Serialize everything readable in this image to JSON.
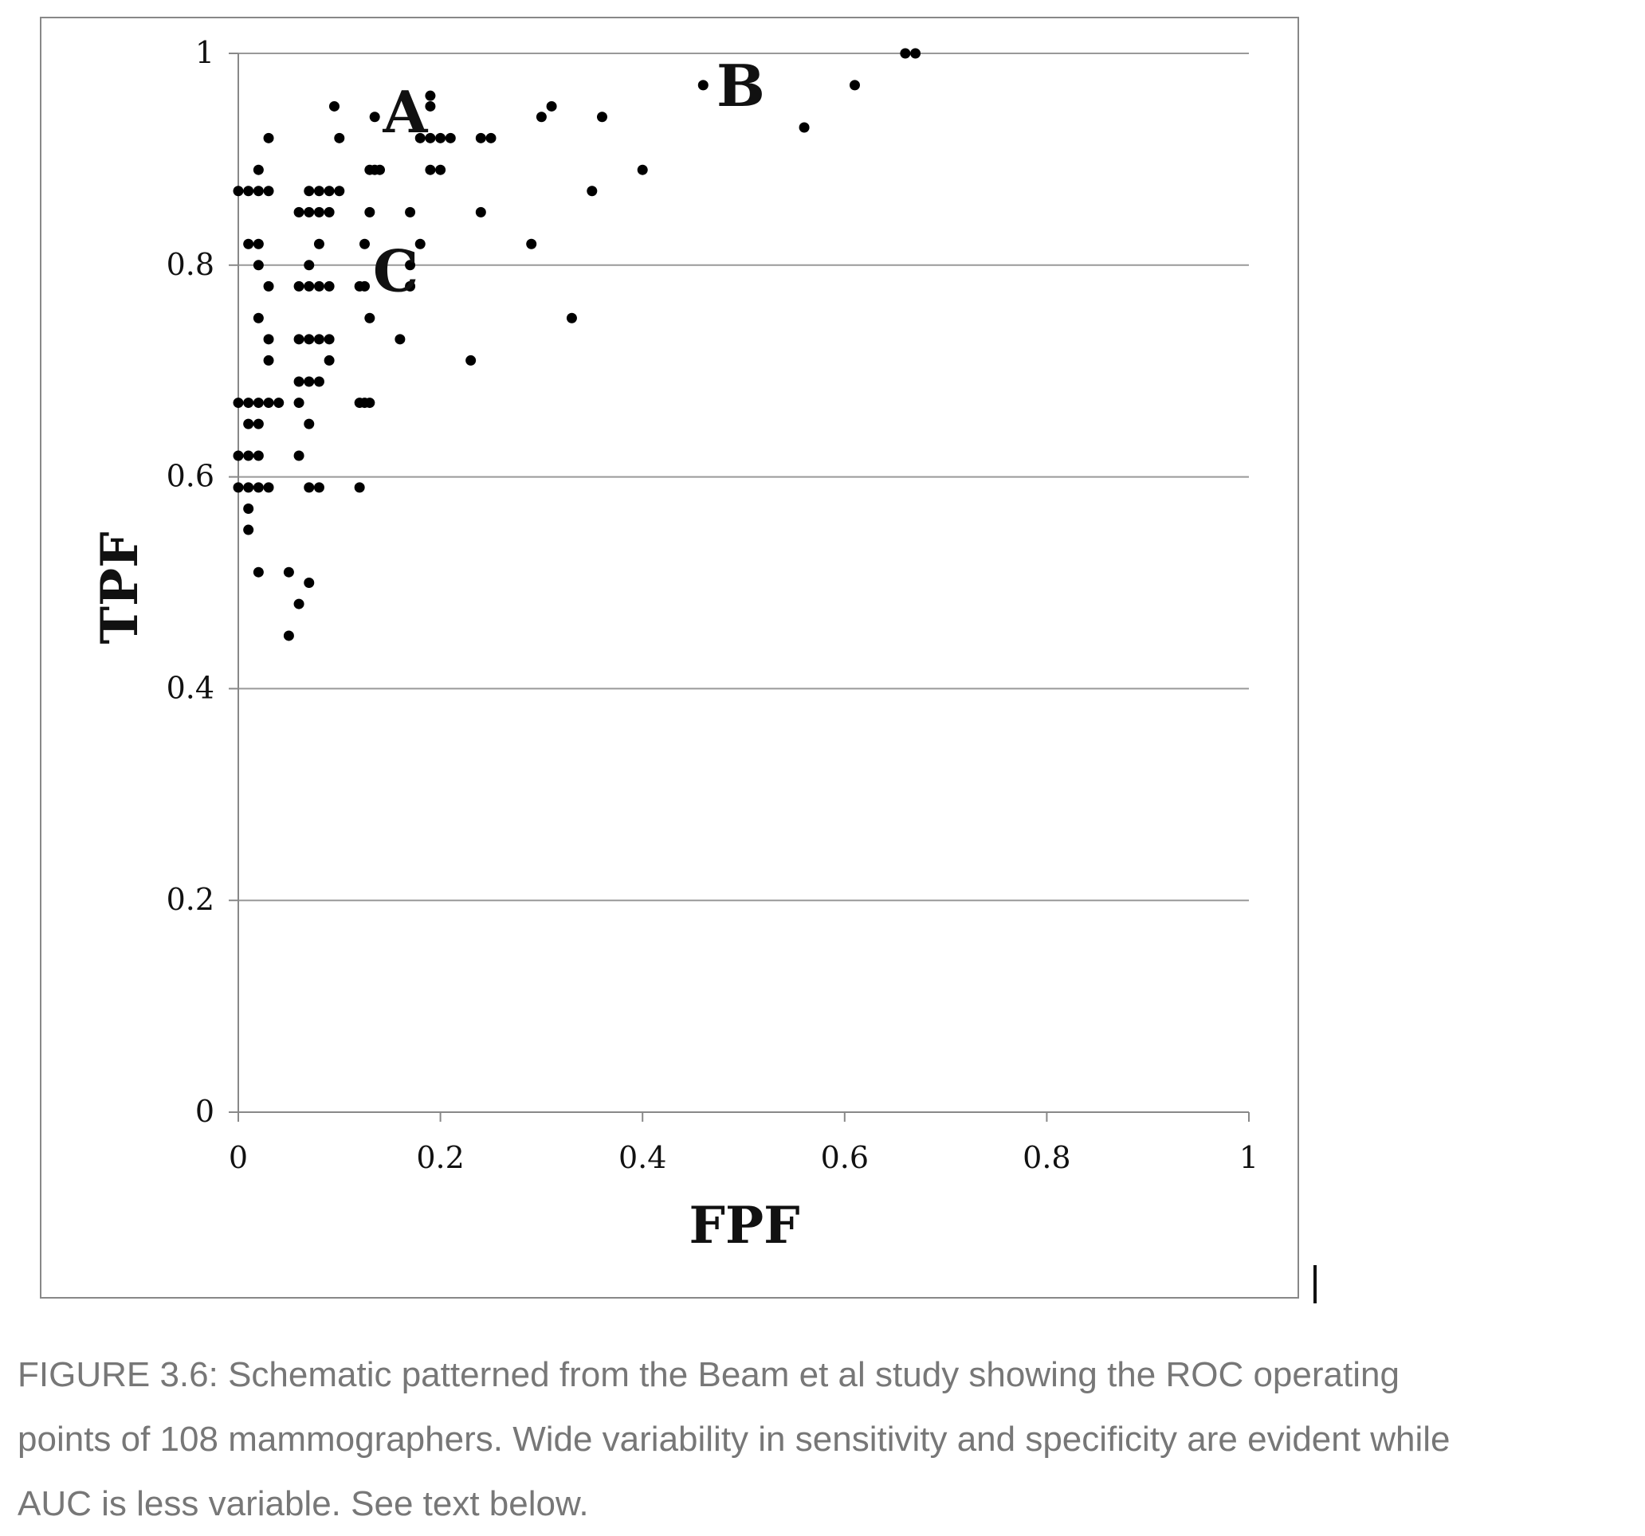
{
  "chart_data": {
    "type": "scatter",
    "title": "",
    "xlabel": "FPF",
    "ylabel": "TPF",
    "xlim": [
      0,
      1
    ],
    "ylim": [
      0,
      1
    ],
    "x_ticks": [
      "0",
      "0.2",
      "0.4",
      "0.6",
      "0.8",
      "1"
    ],
    "y_ticks": [
      "0",
      "0.2",
      "0.4",
      "0.6",
      "0.8",
      "1"
    ],
    "grid": "horizontal",
    "legend": "none",
    "colors": {
      "points": "#000000",
      "grid": "#999999",
      "axis": "#888888"
    },
    "annotations": [
      {
        "text": "A",
        "x": 0.14,
        "y": 0.945
      },
      {
        "text": "B",
        "x": 0.47,
        "y": 0.97
      },
      {
        "text": "C",
        "x": 0.13,
        "y": 0.795
      }
    ],
    "points": [
      [
        0.0,
        0.87
      ],
      [
        0.01,
        0.87
      ],
      [
        0.02,
        0.87
      ],
      [
        0.03,
        0.87
      ],
      [
        0.02,
        0.89
      ],
      [
        0.03,
        0.92
      ],
      [
        0.01,
        0.82
      ],
      [
        0.02,
        0.82
      ],
      [
        0.02,
        0.8
      ],
      [
        0.03,
        0.78
      ],
      [
        0.02,
        0.75
      ],
      [
        0.03,
        0.73
      ],
      [
        0.03,
        0.71
      ],
      [
        0.0,
        0.67
      ],
      [
        0.01,
        0.67
      ],
      [
        0.02,
        0.67
      ],
      [
        0.03,
        0.67
      ],
      [
        0.04,
        0.67
      ],
      [
        0.01,
        0.65
      ],
      [
        0.02,
        0.65
      ],
      [
        0.0,
        0.62
      ],
      [
        0.01,
        0.62
      ],
      [
        0.02,
        0.62
      ],
      [
        0.0,
        0.59
      ],
      [
        0.01,
        0.59
      ],
      [
        0.02,
        0.59
      ],
      [
        0.03,
        0.59
      ],
      [
        0.01,
        0.57
      ],
      [
        0.01,
        0.55
      ],
      [
        0.02,
        0.51
      ],
      [
        0.05,
        0.51
      ],
      [
        0.06,
        0.48
      ],
      [
        0.07,
        0.5
      ],
      [
        0.05,
        0.45
      ],
      [
        0.06,
        0.67
      ],
      [
        0.06,
        0.62
      ],
      [
        0.07,
        0.65
      ],
      [
        0.07,
        0.59
      ],
      [
        0.08,
        0.59
      ],
      [
        0.06,
        0.69
      ],
      [
        0.07,
        0.69
      ],
      [
        0.08,
        0.69
      ],
      [
        0.06,
        0.73
      ],
      [
        0.07,
        0.73
      ],
      [
        0.08,
        0.73
      ],
      [
        0.09,
        0.73
      ],
      [
        0.06,
        0.78
      ],
      [
        0.07,
        0.78
      ],
      [
        0.08,
        0.78
      ],
      [
        0.09,
        0.78
      ],
      [
        0.07,
        0.8
      ],
      [
        0.08,
        0.82
      ],
      [
        0.09,
        0.71
      ],
      [
        0.06,
        0.85
      ],
      [
        0.07,
        0.85
      ],
      [
        0.08,
        0.85
      ],
      [
        0.09,
        0.85
      ],
      [
        0.07,
        0.87
      ],
      [
        0.08,
        0.87
      ],
      [
        0.09,
        0.87
      ],
      [
        0.1,
        0.87
      ],
      [
        0.095,
        0.95
      ],
      [
        0.1,
        0.92
      ],
      [
        0.12,
        0.67
      ],
      [
        0.125,
        0.67
      ],
      [
        0.13,
        0.67
      ],
      [
        0.12,
        0.59
      ],
      [
        0.12,
        0.78
      ],
      [
        0.125,
        0.78
      ],
      [
        0.125,
        0.82
      ],
      [
        0.13,
        0.75
      ],
      [
        0.13,
        0.85
      ],
      [
        0.13,
        0.89
      ],
      [
        0.135,
        0.89
      ],
      [
        0.14,
        0.89
      ],
      [
        0.135,
        0.94
      ],
      [
        0.16,
        0.73
      ],
      [
        0.17,
        0.78
      ],
      [
        0.17,
        0.8
      ],
      [
        0.17,
        0.85
      ],
      [
        0.18,
        0.82
      ],
      [
        0.18,
        0.92
      ],
      [
        0.19,
        0.92
      ],
      [
        0.2,
        0.92
      ],
      [
        0.21,
        0.92
      ],
      [
        0.19,
        0.89
      ],
      [
        0.2,
        0.89
      ],
      [
        0.19,
        0.95
      ],
      [
        0.19,
        0.96
      ],
      [
        0.23,
        0.71
      ],
      [
        0.24,
        0.85
      ],
      [
        0.24,
        0.92
      ],
      [
        0.25,
        0.92
      ],
      [
        0.29,
        0.82
      ],
      [
        0.3,
        0.94
      ],
      [
        0.31,
        0.95
      ],
      [
        0.33,
        0.75
      ],
      [
        0.35,
        0.87
      ],
      [
        0.36,
        0.94
      ],
      [
        0.4,
        0.89
      ],
      [
        0.46,
        0.97
      ],
      [
        0.56,
        0.93
      ],
      [
        0.61,
        0.97
      ],
      [
        0.66,
        1.0
      ],
      [
        0.67,
        1.0
      ]
    ]
  },
  "caption": {
    "line1": "FIGURE 3.6: Schematic patterned from the Beam et al study showing the ROC operating",
    "line2": "points of 108 mammographers. Wide variability in sensitivity and specificity are evident while",
    "line3": "AUC is less variable. See text below."
  }
}
